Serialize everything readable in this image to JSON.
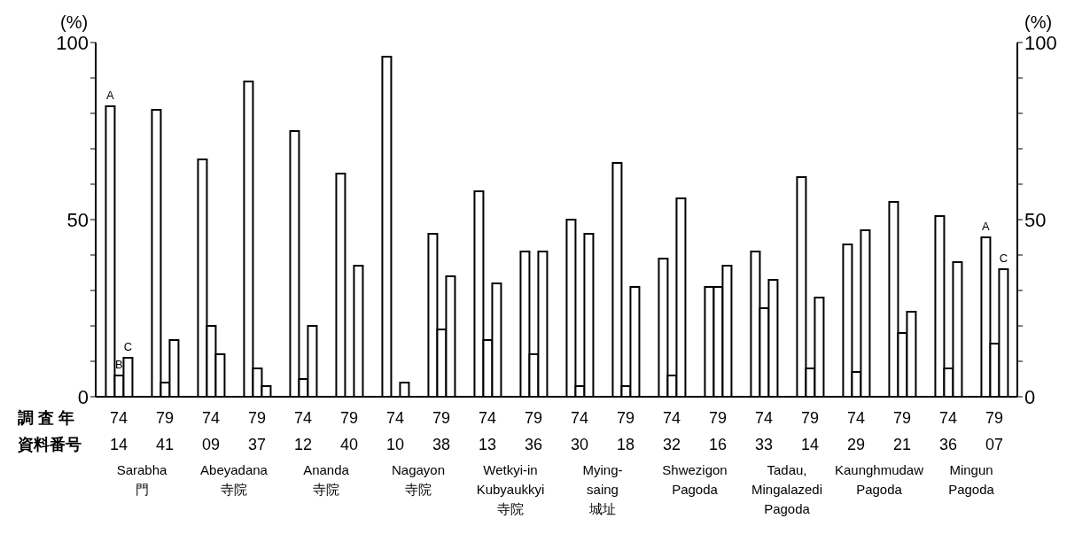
{
  "chart_data": {
    "type": "bar",
    "ylabel": "(%)",
    "y2label": "(%)",
    "categories": [
      "74\n14",
      "79\n41",
      "74\n09",
      "79\n37",
      "74\n12",
      "79\n40",
      "74\n10",
      "79\n38",
      "74\n13",
      "79\n36",
      "74\n30",
      "79\n18",
      "74\n32",
      "79\n16",
      "74\n33",
      "79\n14",
      "74\n29",
      "79\n21",
      "74\n36",
      "79\n07"
    ],
    "series": [
      {
        "name": "A",
        "color": "#000000",
        "values": [
          82,
          81,
          67,
          89,
          75,
          63,
          96,
          46,
          58,
          41,
          50,
          66,
          39,
          31,
          41,
          62,
          43,
          55,
          51,
          45
        ]
      },
      {
        "name": "B",
        "color": "#000000",
        "values": [
          6,
          4,
          20,
          8,
          5,
          0,
          0,
          19,
          16,
          12,
          3,
          3,
          6,
          31,
          25,
          8,
          7,
          18,
          8,
          15
        ]
      },
      {
        "name": "C",
        "color": "#000000",
        "values": [
          11,
          16,
          12,
          3,
          20,
          37,
          4,
          34,
          32,
          41,
          46,
          31,
          56,
          37,
          33,
          28,
          47,
          24,
          38,
          36
        ]
      }
    ],
    "ylim": [
      0,
      100
    ],
    "yticks": [
      0,
      {
        "value": 10,
        "label": null
      },
      {
        "value": 20,
        "label": null
      },
      {
        "value": 30,
        "label": null
      },
      {
        "value": 40,
        "label": null
      },
      50,
      {
        "value": 60,
        "label": null
      },
      {
        "value": 70,
        "label": null
      },
      {
        "value": 80,
        "label": null
      },
      {
        "value": 90,
        "label": null
      },
      100
    ],
    "y2lim": [
      0,
      100
    ],
    "y2ticks": [
      0,
      {
        "value": 10,
        "label": null
      },
      {
        "value": 20,
        "label": null
      },
      {
        "value": 30,
        "label": null
      },
      {
        "value": 40,
        "label": null
      },
      50,
      {
        "value": 60,
        "label": null
      },
      {
        "value": 70,
        "label": null
      },
      {
        "value": 80,
        "label": null
      },
      {
        "value": 90,
        "label": null
      },
      100
    ],
    "annotations": [
      "調 査 年",
      "資料番号",
      "Sarabha\n門",
      "Abeyadana\n寺院",
      "Ananda\n寺院",
      "Nagayon\n寺院",
      "Wetkyi-in\nKubyaukkyi\n寺院",
      "Mying-\nsaing\n城址",
      "Shwezigon\nPagoda",
      "Tadau,\nMingalazedi\nPagoda",
      "Kaunghmudaw\nPagoda",
      "Mingun\nPagoda"
    ],
    "grid": false,
    "legend": false
  }
}
